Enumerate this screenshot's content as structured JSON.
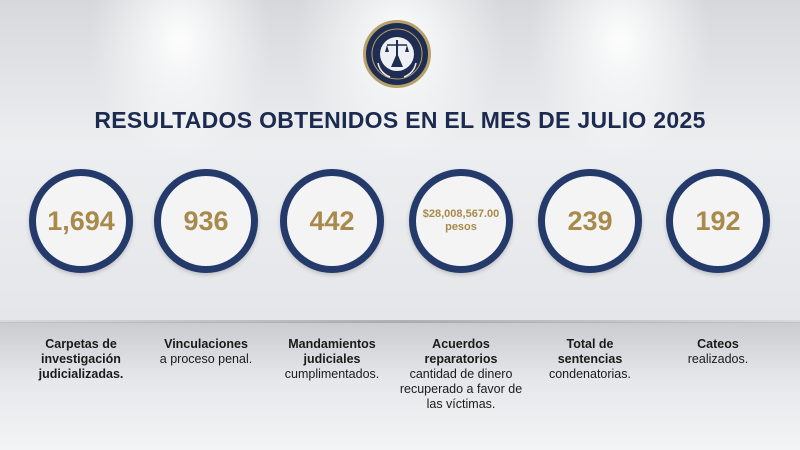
{
  "title": "RESULTADOS OBTENIDOS EN EL MES DE JULIO 2025",
  "colors": {
    "navy": "#1c2a4f",
    "ring": "#243a6b",
    "gold": "#a88a4a"
  },
  "logo": {
    "icon": "justice-seal-icon"
  },
  "stats": [
    {
      "value": "1,694",
      "label_bold": "Carpetas de",
      "label_rest": "investigación judicializadas."
    },
    {
      "value": "936",
      "label_bold": "Vinculaciones",
      "label_rest": "a proceso penal."
    },
    {
      "value": "442",
      "label_bold": "Mandamientos judiciales",
      "label_rest": "cumplimentados."
    },
    {
      "value": "$28,008,567.00",
      "unit": "pesos",
      "label_bold": "Acuerdos reparatorios",
      "label_rest": "cantidad de dinero recuperado a favor de las víctimas."
    },
    {
      "value": "239",
      "label_bold": "Total de sentencias",
      "label_rest": "condenatorias."
    },
    {
      "value": "192",
      "label_bold": "Cateos",
      "label_rest": "realizados."
    }
  ]
}
